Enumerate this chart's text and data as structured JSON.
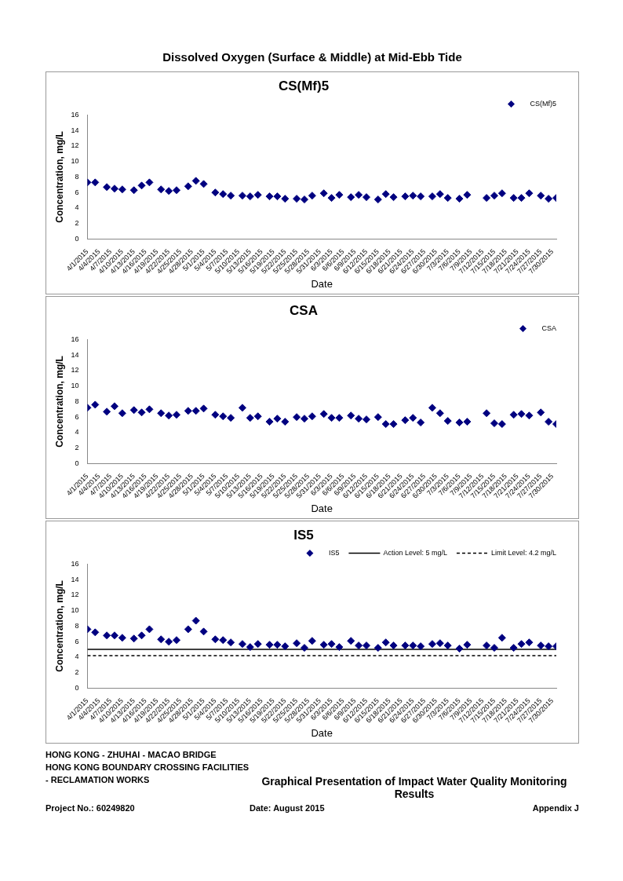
{
  "chart_data": [
    {
      "type": "other",
      "title": "Dissolved Oxygen (Surface & Middle) at Mid-Ebb Tide"
    },
    {
      "type": "scatter",
      "title": "CS(Mf)5",
      "xlabel": "Date",
      "ylabel": "Concentration, mg/L",
      "marker": "diamond",
      "grid": false,
      "legend": "top right",
      "x": [
        "2015-04-01",
        "2015-04-03",
        "2015-04-06",
        "2015-04-08",
        "2015-04-10",
        "2015-04-13",
        "2015-04-15",
        "2015-04-17",
        "2015-04-20",
        "2015-04-22",
        "2015-04-24",
        "2015-04-27",
        "2015-04-29",
        "2015-05-01",
        "2015-05-04",
        "2015-05-06",
        "2015-05-08",
        "2015-05-11",
        "2015-05-13",
        "2015-05-15",
        "2015-05-18",
        "2015-05-20",
        "2015-05-22",
        "2015-05-25",
        "2015-05-27",
        "2015-05-29",
        "2015-06-01",
        "2015-06-03",
        "2015-06-05",
        "2015-06-08",
        "2015-06-10",
        "2015-06-12",
        "2015-06-15",
        "2015-06-17",
        "2015-06-19",
        "2015-06-22",
        "2015-06-24",
        "2015-06-26",
        "2015-06-29",
        "2015-07-01",
        "2015-07-03",
        "2015-07-06",
        "2015-07-08",
        "2015-07-13",
        "2015-07-15",
        "2015-07-17",
        "2015-07-20",
        "2015-07-22",
        "2015-07-24",
        "2015-07-27",
        "2015-07-29",
        "2015-07-31"
      ],
      "series": [
        {
          "name": "CS(Mf)5",
          "color": "#000080",
          "values": [
            7.3,
            7.3,
            6.7,
            6.5,
            6.4,
            6.3,
            6.9,
            7.3,
            6.4,
            6.2,
            6.3,
            6.8,
            7.5,
            7.1,
            6.0,
            5.8,
            5.6,
            5.6,
            5.5,
            5.7,
            5.5,
            5.5,
            5.2,
            5.2,
            5.1,
            5.6,
            5.9,
            5.3,
            5.7,
            5.4,
            5.7,
            5.4,
            5.1,
            5.8,
            5.4,
            5.5,
            5.6,
            5.5,
            5.5,
            5.8,
            5.3,
            5.2,
            5.7,
            5.3,
            5.6,
            5.9,
            5.3,
            5.3,
            5.9,
            5.6,
            5.2,
            5.3
          ]
        }
      ],
      "xlim": [
        "2015-04-01",
        "2015-07-31"
      ],
      "xticks": [
        {
          "value": "2015-04-01",
          "label": "4/1/2015"
        },
        {
          "value": "2015-04-04",
          "label": "4/4/2015"
        },
        {
          "value": "2015-04-07",
          "label": "4/7/2015"
        },
        {
          "value": "2015-04-10",
          "label": "4/10/2015"
        },
        {
          "value": "2015-04-13",
          "label": "4/13/2015"
        },
        {
          "value": "2015-04-16",
          "label": "4/16/2015"
        },
        {
          "value": "2015-04-19",
          "label": "4/19/2015"
        },
        {
          "value": "2015-04-22",
          "label": "4/22/2015"
        },
        {
          "value": "2015-04-25",
          "label": "4/25/2015"
        },
        {
          "value": "2015-04-28",
          "label": "4/28/2015"
        },
        {
          "value": "2015-05-01",
          "label": "5/1/2015"
        },
        {
          "value": "2015-05-04",
          "label": "5/4/2015"
        },
        {
          "value": "2015-05-07",
          "label": "5/7/2015"
        },
        {
          "value": "2015-05-10",
          "label": "5/10/2015"
        },
        {
          "value": "2015-05-13",
          "label": "5/13/2015"
        },
        {
          "value": "2015-05-16",
          "label": "5/16/2015"
        },
        {
          "value": "2015-05-19",
          "label": "5/19/2015"
        },
        {
          "value": "2015-05-22",
          "label": "5/22/2015"
        },
        {
          "value": "2015-05-25",
          "label": "5/25/2015"
        },
        {
          "value": "2015-05-28",
          "label": "5/28/2015"
        },
        {
          "value": "2015-05-31",
          "label": "5/31/2015"
        },
        {
          "value": "2015-06-03",
          "label": "6/3/2015"
        },
        {
          "value": "2015-06-06",
          "label": "6/6/2015"
        },
        {
          "value": "2015-06-09",
          "label": "6/9/2015"
        },
        {
          "value": "2015-06-12",
          "label": "6/12/2015"
        },
        {
          "value": "2015-06-15",
          "label": "6/15/2015"
        },
        {
          "value": "2015-06-18",
          "label": "6/18/2015"
        },
        {
          "value": "2015-06-21",
          "label": "6/21/2015"
        },
        {
          "value": "2015-06-24",
          "label": "6/24/2015"
        },
        {
          "value": "2015-06-27",
          "label": "6/27/2015"
        },
        {
          "value": "2015-06-30",
          "label": "6/30/2015"
        },
        {
          "value": "2015-07-03",
          "label": "7/3/2015"
        },
        {
          "value": "2015-07-06",
          "label": "7/6/2015"
        },
        {
          "value": "2015-07-09",
          "label": "7/9/2015"
        },
        {
          "value": "2015-07-12",
          "label": "7/12/2015"
        },
        {
          "value": "2015-07-15",
          "label": "7/15/2015"
        },
        {
          "value": "2015-07-18",
          "label": "7/18/2015"
        },
        {
          "value": "2015-07-21",
          "label": "7/21/2015"
        },
        {
          "value": "2015-07-24",
          "label": "7/24/2015"
        },
        {
          "value": "2015-07-27",
          "label": "7/27/2015"
        },
        {
          "value": "2015-07-30",
          "label": "7/30/2015"
        }
      ],
      "ylim": [
        0,
        16
      ],
      "yticks": [
        0,
        2,
        4,
        6,
        8,
        10,
        12,
        14,
        16
      ]
    },
    {
      "type": "scatter",
      "title": "CSA",
      "xlabel": "Date",
      "ylabel": "Concentration, mg/L",
      "marker": "diamond",
      "grid": false,
      "legend": "top right",
      "x": [
        "2015-04-01",
        "2015-04-03",
        "2015-04-06",
        "2015-04-08",
        "2015-04-10",
        "2015-04-13",
        "2015-04-15",
        "2015-04-17",
        "2015-04-20",
        "2015-04-22",
        "2015-04-24",
        "2015-04-27",
        "2015-04-29",
        "2015-05-01",
        "2015-05-04",
        "2015-05-06",
        "2015-05-08",
        "2015-05-11",
        "2015-05-13",
        "2015-05-15",
        "2015-05-18",
        "2015-05-20",
        "2015-05-22",
        "2015-05-25",
        "2015-05-27",
        "2015-05-29",
        "2015-06-01",
        "2015-06-03",
        "2015-06-05",
        "2015-06-08",
        "2015-06-10",
        "2015-06-12",
        "2015-06-15",
        "2015-06-17",
        "2015-06-19",
        "2015-06-22",
        "2015-06-24",
        "2015-06-26",
        "2015-06-29",
        "2015-07-01",
        "2015-07-03",
        "2015-07-06",
        "2015-07-08",
        "2015-07-13",
        "2015-07-15",
        "2015-07-17",
        "2015-07-20",
        "2015-07-22",
        "2015-07-24",
        "2015-07-27",
        "2015-07-29",
        "2015-07-31"
      ],
      "series": [
        {
          "name": "CSA",
          "color": "#000080",
          "values": [
            7.2,
            7.6,
            6.7,
            7.4,
            6.5,
            6.9,
            6.6,
            7.0,
            6.5,
            6.2,
            6.3,
            6.8,
            6.8,
            7.1,
            6.3,
            6.1,
            5.9,
            7.2,
            5.9,
            6.1,
            5.4,
            5.8,
            5.4,
            6.0,
            5.8,
            6.1,
            6.4,
            5.9,
            5.9,
            6.2,
            5.8,
            5.7,
            6.0,
            5.1,
            5.1,
            5.6,
            5.9,
            5.3,
            7.2,
            6.5,
            5.5,
            5.3,
            5.4,
            6.5,
            5.2,
            5.1,
            6.3,
            6.4,
            6.2,
            6.6,
            5.4,
            5.1
          ]
        }
      ],
      "xlim": [
        "2015-04-01",
        "2015-07-31"
      ],
      "xticks": [
        {
          "value": "2015-04-01",
          "label": "4/1/2015"
        },
        {
          "value": "2015-04-04",
          "label": "4/4/2015"
        },
        {
          "value": "2015-04-07",
          "label": "4/7/2015"
        },
        {
          "value": "2015-04-10",
          "label": "4/10/2015"
        },
        {
          "value": "2015-04-13",
          "label": "4/13/2015"
        },
        {
          "value": "2015-04-16",
          "label": "4/16/2015"
        },
        {
          "value": "2015-04-19",
          "label": "4/19/2015"
        },
        {
          "value": "2015-04-22",
          "label": "4/22/2015"
        },
        {
          "value": "2015-04-25",
          "label": "4/25/2015"
        },
        {
          "value": "2015-04-28",
          "label": "4/28/2015"
        },
        {
          "value": "2015-05-01",
          "label": "5/1/2015"
        },
        {
          "value": "2015-05-04",
          "label": "5/4/2015"
        },
        {
          "value": "2015-05-07",
          "label": "5/7/2015"
        },
        {
          "value": "2015-05-10",
          "label": "5/10/2015"
        },
        {
          "value": "2015-05-13",
          "label": "5/13/2015"
        },
        {
          "value": "2015-05-16",
          "label": "5/16/2015"
        },
        {
          "value": "2015-05-19",
          "label": "5/19/2015"
        },
        {
          "value": "2015-05-22",
          "label": "5/22/2015"
        },
        {
          "value": "2015-05-25",
          "label": "5/25/2015"
        },
        {
          "value": "2015-05-28",
          "label": "5/28/2015"
        },
        {
          "value": "2015-05-31",
          "label": "5/31/2015"
        },
        {
          "value": "2015-06-03",
          "label": "6/3/2015"
        },
        {
          "value": "2015-06-06",
          "label": "6/6/2015"
        },
        {
          "value": "2015-06-09",
          "label": "6/9/2015"
        },
        {
          "value": "2015-06-12",
          "label": "6/12/2015"
        },
        {
          "value": "2015-06-15",
          "label": "6/15/2015"
        },
        {
          "value": "2015-06-18",
          "label": "6/18/2015"
        },
        {
          "value": "2015-06-21",
          "label": "6/21/2015"
        },
        {
          "value": "2015-06-24",
          "label": "6/24/2015"
        },
        {
          "value": "2015-06-27",
          "label": "6/27/2015"
        },
        {
          "value": "2015-06-30",
          "label": "6/30/2015"
        },
        {
          "value": "2015-07-03",
          "label": "7/3/2015"
        },
        {
          "value": "2015-07-06",
          "label": "7/6/2015"
        },
        {
          "value": "2015-07-09",
          "label": "7/9/2015"
        },
        {
          "value": "2015-07-12",
          "label": "7/12/2015"
        },
        {
          "value": "2015-07-15",
          "label": "7/15/2015"
        },
        {
          "value": "2015-07-18",
          "label": "7/18/2015"
        },
        {
          "value": "2015-07-21",
          "label": "7/21/2015"
        },
        {
          "value": "2015-07-24",
          "label": "7/24/2015"
        },
        {
          "value": "2015-07-27",
          "label": "7/27/2015"
        },
        {
          "value": "2015-07-30",
          "label": "7/30/2015"
        }
      ],
      "ylim": [
        0,
        16
      ],
      "yticks": [
        0,
        2,
        4,
        6,
        8,
        10,
        12,
        14,
        16
      ]
    },
    {
      "type": "scatter",
      "title": "IS5",
      "xlabel": "Date",
      "ylabel": "Concentration, mg/L",
      "marker": "diamond",
      "grid": false,
      "legend": "top right",
      "x": [
        "2015-04-01",
        "2015-04-03",
        "2015-04-06",
        "2015-04-08",
        "2015-04-10",
        "2015-04-13",
        "2015-04-15",
        "2015-04-17",
        "2015-04-20",
        "2015-04-22",
        "2015-04-24",
        "2015-04-27",
        "2015-04-29",
        "2015-05-01",
        "2015-05-04",
        "2015-05-06",
        "2015-05-08",
        "2015-05-11",
        "2015-05-13",
        "2015-05-15",
        "2015-05-18",
        "2015-05-20",
        "2015-05-22",
        "2015-05-25",
        "2015-05-27",
        "2015-05-29",
        "2015-06-01",
        "2015-06-03",
        "2015-06-05",
        "2015-06-08",
        "2015-06-10",
        "2015-06-12",
        "2015-06-15",
        "2015-06-17",
        "2015-06-19",
        "2015-06-22",
        "2015-06-24",
        "2015-06-26",
        "2015-06-29",
        "2015-07-01",
        "2015-07-03",
        "2015-07-06",
        "2015-07-08",
        "2015-07-13",
        "2015-07-15",
        "2015-07-17",
        "2015-07-20",
        "2015-07-22",
        "2015-07-24",
        "2015-07-27",
        "2015-07-29",
        "2015-07-31"
      ],
      "series": [
        {
          "name": "IS5",
          "color": "#000080",
          "values": [
            7.6,
            7.2,
            6.8,
            6.8,
            6.5,
            6.4,
            6.8,
            7.6,
            6.3,
            6.0,
            6.2,
            7.6,
            8.7,
            7.3,
            6.3,
            6.2,
            5.9,
            5.7,
            5.3,
            5.7,
            5.6,
            5.6,
            5.4,
            5.8,
            5.2,
            6.1,
            5.6,
            5.7,
            5.3,
            6.1,
            5.5,
            5.5,
            5.2,
            5.9,
            5.5,
            5.5,
            5.5,
            5.4,
            5.7,
            5.8,
            5.5,
            5.1,
            5.6,
            5.5,
            5.2,
            6.5,
            5.2,
            5.7,
            5.9,
            5.5,
            5.4,
            5.4
          ]
        }
      ],
      "ref_lines": [
        {
          "axis": "y",
          "value": 5,
          "label": "Action Level: 5 mg/L",
          "color": "#000000",
          "line_style": "solid"
        },
        {
          "axis": "y",
          "value": 4.2,
          "label": "Limit Level: 4.2 mg/L",
          "color": "#000000",
          "line_style": "dashed"
        }
      ],
      "xlim": [
        "2015-04-01",
        "2015-07-31"
      ],
      "xticks": [
        {
          "value": "2015-04-01",
          "label": "4/1/2015"
        },
        {
          "value": "2015-04-04",
          "label": "4/4/2015"
        },
        {
          "value": "2015-04-07",
          "label": "4/7/2015"
        },
        {
          "value": "2015-04-10",
          "label": "4/10/2015"
        },
        {
          "value": "2015-04-13",
          "label": "4/13/2015"
        },
        {
          "value": "2015-04-16",
          "label": "4/16/2015"
        },
        {
          "value": "2015-04-19",
          "label": "4/19/2015"
        },
        {
          "value": "2015-04-22",
          "label": "4/22/2015"
        },
        {
          "value": "2015-04-25",
          "label": "4/25/2015"
        },
        {
          "value": "2015-04-28",
          "label": "4/28/2015"
        },
        {
          "value": "2015-05-01",
          "label": "5/1/2015"
        },
        {
          "value": "2015-05-04",
          "label": "5/4/2015"
        },
        {
          "value": "2015-05-07",
          "label": "5/7/2015"
        },
        {
          "value": "2015-05-10",
          "label": "5/10/2015"
        },
        {
          "value": "2015-05-13",
          "label": "5/13/2015"
        },
        {
          "value": "2015-05-16",
          "label": "5/16/2015"
        },
        {
          "value": "2015-05-19",
          "label": "5/19/2015"
        },
        {
          "value": "2015-05-22",
          "label": "5/22/2015"
        },
        {
          "value": "2015-05-25",
          "label": "5/25/2015"
        },
        {
          "value": "2015-05-28",
          "label": "5/28/2015"
        },
        {
          "value": "2015-05-31",
          "label": "5/31/2015"
        },
        {
          "value": "2015-06-03",
          "label": "6/3/2015"
        },
        {
          "value": "2015-06-06",
          "label": "6/6/2015"
        },
        {
          "value": "2015-06-09",
          "label": "6/9/2015"
        },
        {
          "value": "2015-06-12",
          "label": "6/12/2015"
        },
        {
          "value": "2015-06-15",
          "label": "6/15/2015"
        },
        {
          "value": "2015-06-18",
          "label": "6/18/2015"
        },
        {
          "value": "2015-06-21",
          "label": "6/21/2015"
        },
        {
          "value": "2015-06-24",
          "label": "6/24/2015"
        },
        {
          "value": "2015-06-27",
          "label": "6/27/2015"
        },
        {
          "value": "2015-06-30",
          "label": "6/30/2015"
        },
        {
          "value": "2015-07-03",
          "label": "7/3/2015"
        },
        {
          "value": "2015-07-06",
          "label": "7/6/2015"
        },
        {
          "value": "2015-07-09",
          "label": "7/9/2015"
        },
        {
          "value": "2015-07-12",
          "label": "7/12/2015"
        },
        {
          "value": "2015-07-15",
          "label": "7/15/2015"
        },
        {
          "value": "2015-07-18",
          "label": "7/18/2015"
        },
        {
          "value": "2015-07-21",
          "label": "7/21/2015"
        },
        {
          "value": "2015-07-24",
          "label": "7/24/2015"
        },
        {
          "value": "2015-07-27",
          "label": "7/27/2015"
        },
        {
          "value": "2015-07-30",
          "label": "7/30/2015"
        }
      ],
      "ylim": [
        0,
        16
      ],
      "yticks": [
        0,
        2,
        4,
        6,
        8,
        10,
        12,
        14,
        16
      ]
    },
    {
      "type": "other",
      "annotations": [
        "HONG KONG - ZHUHAI - MACAO BRIDGE",
        "HONG KONG BOUNDARY CROSSING FACILITIES",
        "- RECLAMATION WORKS",
        "Graphical Presentation of Impact Water Quality Monitoring Results",
        "Project No.: 60249820",
        "Date: August 2015",
        "Appendix J"
      ]
    }
  ]
}
